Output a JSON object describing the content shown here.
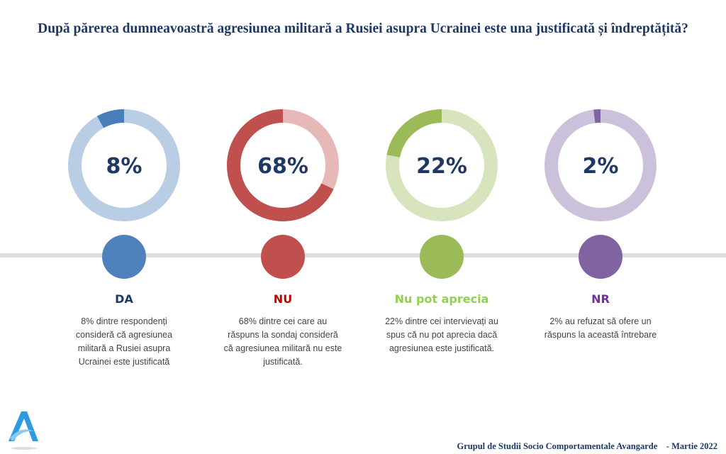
{
  "chart_data": {
    "type": "donut",
    "title": "După părerea dumneavoastră agresiunea militară a Rusiei asupra Ucrainei este una justificată și îndreptățită?",
    "unit": "%",
    "items": [
      {
        "label": "DA",
        "value": 8,
        "value_label": "8%",
        "color": "#4a7ebb",
        "track_color": "#b9cde5",
        "label_color": "#1f3864",
        "marker_color": "#4f81bd",
        "description": "8% dintre respondenți consideră că agresiunea militară a Rusiei asupra Ucrainei este justificată"
      },
      {
        "label": "NU",
        "value": 68,
        "value_label": "68%",
        "color": "#c0504d",
        "track_color": "#e6b9b8",
        "label_color": "#c00000",
        "marker_color": "#c0504d",
        "description": "68% dintre cei care au răspuns la sondaj consideră că agresiunea militară nu este justificată."
      },
      {
        "label": "Nu pot aprecia",
        "value": 22,
        "value_label": "22%",
        "color": "#9bbb59",
        "track_color": "#d7e4bd",
        "label_color": "#92d050",
        "marker_color": "#9bbb59",
        "description": "22% dintre cei intervievați au spus că nu pot aprecia dacă agresiunea este justificată."
      },
      {
        "label": "NR",
        "value": 2,
        "value_label": "2%",
        "color": "#8064a2",
        "track_color": "#ccc1da",
        "label_color": "#7030a0",
        "marker_color": "#8064a2",
        "description": "2% au refuzat să ofere un răspuns la această întrebare"
      }
    ]
  },
  "footer": "Grupul de Studii Socio Comportamentale Avangarde    - Martie 2022",
  "logo": {
    "icon": "avangarde-a-logo",
    "color": "#2e9be0"
  }
}
